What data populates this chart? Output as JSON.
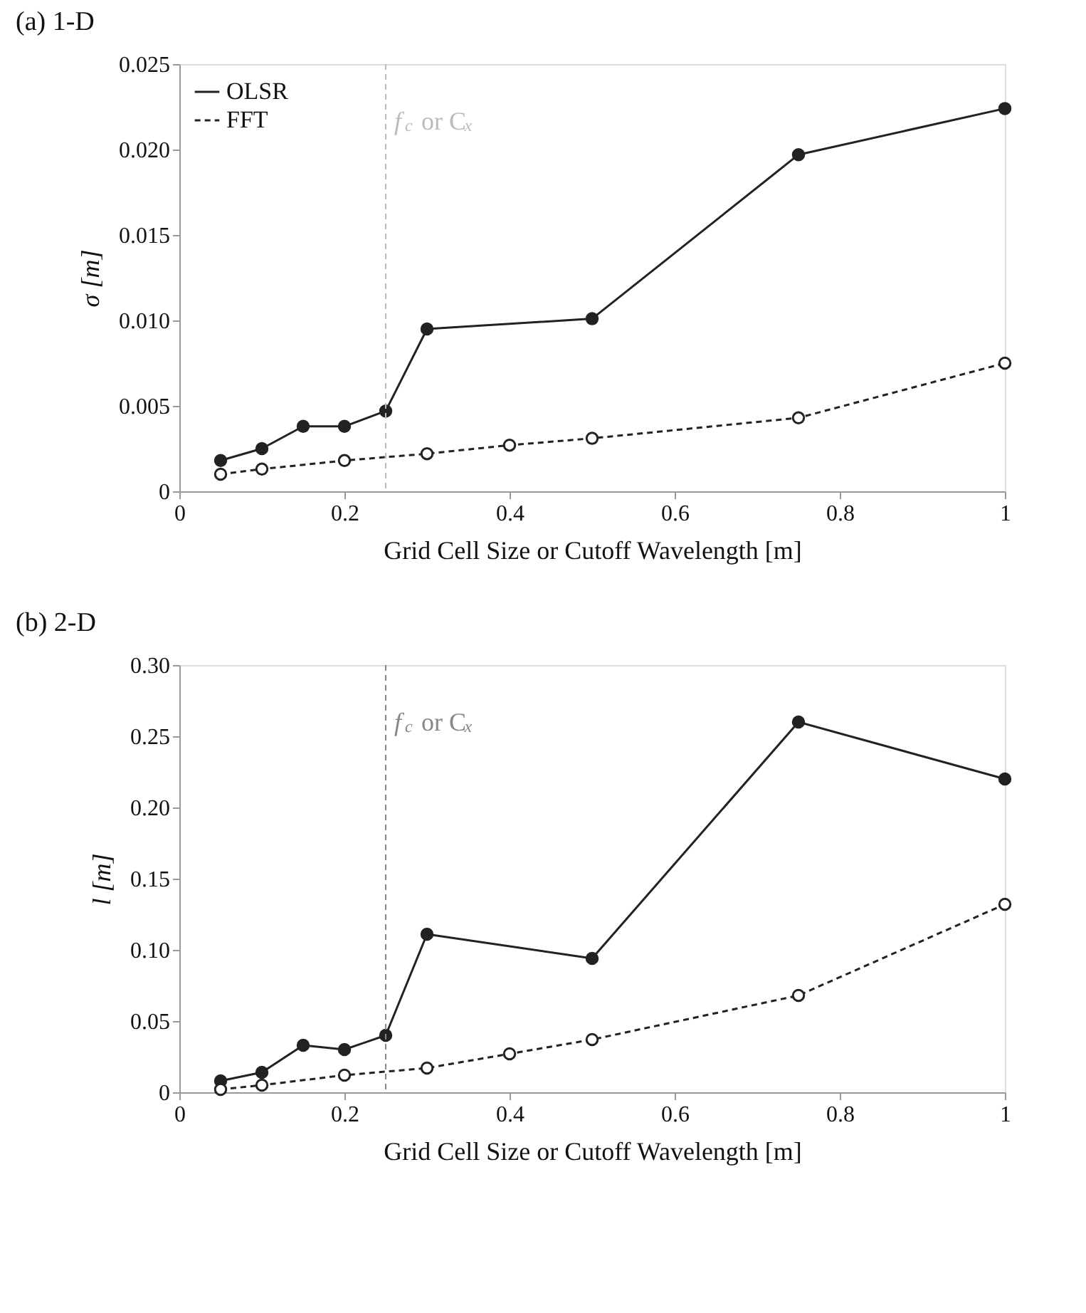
{
  "chart_data": [
    {
      "type": "line",
      "title": "(a) 1-D",
      "xlabel": "Grid Cell Size or Cutoff Wavelength [m]",
      "ylabel": "σ [m]",
      "xlim": [
        0,
        1
      ],
      "xticks": [
        0,
        0.2,
        0.4,
        0.6,
        0.8,
        1
      ],
      "ylim": [
        0,
        0.025
      ],
      "yticks": [
        0,
        0.005,
        {
          "value": 0.01,
          "label": "0.010"
        },
        0.015,
        {
          "value": 0.02,
          "label": "0.020"
        },
        0.025
      ],
      "grid": false,
      "legend": "top left",
      "marker": "circle",
      "series": [
        {
          "name": "OLSR",
          "color": "#222222",
          "line_style": "solid",
          "x": [
            0.05,
            0.1,
            0.15,
            0.2,
            0.25,
            0.3,
            0.5,
            0.75,
            1.0
          ],
          "values": [
            0.0018,
            0.0025,
            0.0038,
            0.0038,
            0.0047,
            0.0095,
            0.0101,
            0.0197,
            0.0224
          ]
        },
        {
          "name": "FFT",
          "color": "#222222",
          "line_style": "dashed",
          "x": [
            0.05,
            0.1,
            0.2,
            0.3,
            0.4,
            0.5,
            0.75,
            1.0
          ],
          "values": [
            0.001,
            0.0013,
            0.0018,
            0.0022,
            0.0027,
            0.0031,
            0.0043,
            0.0075
          ]
        }
      ],
      "ref_lines": [
        {
          "axis": "x",
          "value": 0.25,
          "label": "f$_{c}$ or C$_{x}$",
          "color": "#bbbbbb",
          "line_style": "dashed"
        }
      ]
    },
    {
      "type": "line",
      "title": "(b) 2-D",
      "xlabel": "Grid Cell Size or Cutoff Wavelength [m]",
      "ylabel": "l [m]",
      "xlim": [
        0,
        1
      ],
      "xticks": [
        0,
        0.2,
        0.4,
        0.6,
        0.8,
        1
      ],
      "ylim": [
        0,
        0.3
      ],
      "yticks": [
        0,
        0.05,
        {
          "value": 0.1,
          "label": "0.10"
        },
        0.15,
        {
          "value": 0.2,
          "label": "0.20"
        },
        0.25,
        {
          "value": 0.3,
          "label": "0.30"
        }
      ],
      "grid": false,
      "legend": "top left",
      "marker": "circle",
      "series": [
        {
          "name": "OLSR",
          "color": "#222222",
          "line_style": "solid",
          "x": [
            0.05,
            0.1,
            0.15,
            0.2,
            0.25,
            0.3,
            0.5,
            0.75,
            1.0
          ],
          "values": [
            0.008,
            0.014,
            0.033,
            0.03,
            0.04,
            0.111,
            0.094,
            0.26,
            0.22
          ]
        },
        {
          "name": "FFT",
          "color": "#222222",
          "line_style": "dashed",
          "x": [
            0.05,
            0.1,
            0.2,
            0.3,
            0.4,
            0.5,
            0.75,
            1.0
          ],
          "values": [
            0.002,
            0.005,
            0.012,
            0.017,
            0.027,
            0.037,
            0.068,
            0.132
          ]
        }
      ],
      "ref_lines": [
        {
          "axis": "x",
          "value": 0.25,
          "label": "f$_{c}$ or C$_{x}$",
          "color": "#888888",
          "line_style": "dashed"
        }
      ]
    }
  ]
}
